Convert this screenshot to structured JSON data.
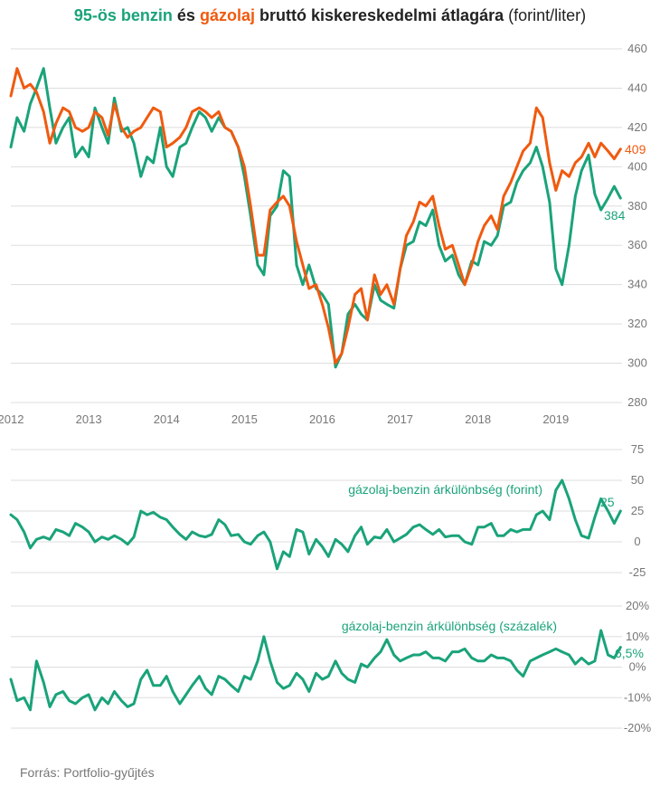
{
  "title": {
    "part1": "95-ös benzin",
    "part2": " és ",
    "part3": "gázolaj",
    "part4": " bruttó kiskereskedelmi átlagára",
    "part5": " (forint/liter)"
  },
  "source": "Forrás: Portfolio-gyűjtés",
  "colors": {
    "benzin": "#1aa37a",
    "gazolaj": "#f05a0f",
    "grid": "#dddddd",
    "tick": "#777777"
  },
  "chart_data": [
    {
      "type": "line",
      "title": "95-ös benzin és gázolaj bruttó kiskereskedelmi átlagára (forint/liter)",
      "xlabel": "",
      "ylabel": "",
      "x_ticks": [
        "2012",
        "2013",
        "2014",
        "2015",
        "2016",
        "2017",
        "2018",
        "2019"
      ],
      "xlim": [
        2012,
        2019.85
      ],
      "ylim": [
        280,
        460
      ],
      "y_ticks": [
        280,
        300,
        320,
        340,
        360,
        380,
        400,
        420,
        440,
        460
      ],
      "grid": true,
      "end_labels": {
        "gazolaj": "409",
        "benzin": "384"
      },
      "series": [
        {
          "name": "95-ös benzin",
          "color": "#1aa37a",
          "x": [
            2012.0,
            2012.08,
            2012.17,
            2012.25,
            2012.33,
            2012.42,
            2012.5,
            2012.58,
            2012.67,
            2012.75,
            2012.83,
            2012.92,
            2013.0,
            2013.08,
            2013.17,
            2013.25,
            2013.33,
            2013.42,
            2013.5,
            2013.58,
            2013.67,
            2013.75,
            2013.83,
            2013.92,
            2014.0,
            2014.08,
            2014.17,
            2014.25,
            2014.33,
            2014.42,
            2014.5,
            2014.58,
            2014.67,
            2014.75,
            2014.83,
            2014.92,
            2015.0,
            2015.08,
            2015.17,
            2015.25,
            2015.33,
            2015.42,
            2015.5,
            2015.58,
            2015.67,
            2015.75,
            2015.83,
            2015.92,
            2016.0,
            2016.08,
            2016.17,
            2016.25,
            2016.33,
            2016.42,
            2016.5,
            2016.58,
            2016.67,
            2016.75,
            2016.83,
            2016.92,
            2017.0,
            2017.08,
            2017.17,
            2017.25,
            2017.33,
            2017.42,
            2017.5,
            2017.58,
            2017.67,
            2017.75,
            2017.83,
            2017.92,
            2018.0,
            2018.08,
            2018.17,
            2018.25,
            2018.33,
            2018.42,
            2018.5,
            2018.58,
            2018.67,
            2018.75,
            2018.83,
            2018.92,
            2019.0,
            2019.08,
            2019.17,
            2019.25,
            2019.33,
            2019.42,
            2019.5,
            2019.58,
            2019.67,
            2019.75,
            2019.83
          ],
          "y": [
            410,
            425,
            418,
            432,
            440,
            450,
            430,
            412,
            420,
            425,
            405,
            410,
            405,
            430,
            420,
            412,
            435,
            418,
            420,
            412,
            395,
            405,
            402,
            420,
            400,
            395,
            410,
            412,
            420,
            428,
            425,
            418,
            425,
            420,
            418,
            410,
            395,
            375,
            350,
            345,
            375,
            380,
            398,
            395,
            350,
            340,
            350,
            338,
            335,
            330,
            298,
            305,
            325,
            330,
            325,
            322,
            340,
            332,
            330,
            328,
            348,
            360,
            362,
            372,
            370,
            378,
            360,
            352,
            355,
            345,
            340,
            352,
            350,
            362,
            360,
            365,
            380,
            382,
            392,
            398,
            402,
            410,
            400,
            382,
            348,
            340,
            360,
            385,
            398,
            406,
            386,
            378,
            384,
            390,
            384
          ]
        },
        {
          "name": "gázolaj",
          "color": "#f05a0f",
          "x": [
            2012.0,
            2012.08,
            2012.17,
            2012.25,
            2012.33,
            2012.42,
            2012.5,
            2012.58,
            2012.67,
            2012.75,
            2012.83,
            2012.92,
            2013.0,
            2013.08,
            2013.17,
            2013.25,
            2013.33,
            2013.42,
            2013.5,
            2013.58,
            2013.67,
            2013.75,
            2013.83,
            2013.92,
            2014.0,
            2014.08,
            2014.17,
            2014.25,
            2014.33,
            2014.42,
            2014.5,
            2014.58,
            2014.67,
            2014.75,
            2014.83,
            2014.92,
            2015.0,
            2015.08,
            2015.17,
            2015.25,
            2015.33,
            2015.42,
            2015.5,
            2015.58,
            2015.67,
            2015.75,
            2015.83,
            2015.92,
            2016.0,
            2016.08,
            2016.17,
            2016.25,
            2016.33,
            2016.42,
            2016.5,
            2016.58,
            2016.67,
            2016.75,
            2016.83,
            2016.92,
            2017.0,
            2017.08,
            2017.17,
            2017.25,
            2017.33,
            2017.42,
            2017.5,
            2017.58,
            2017.67,
            2017.75,
            2017.83,
            2017.92,
            2018.0,
            2018.08,
            2018.17,
            2018.25,
            2018.33,
            2018.42,
            2018.5,
            2018.58,
            2018.67,
            2018.75,
            2018.83,
            2018.92,
            2019.0,
            2019.08,
            2019.17,
            2019.25,
            2019.33,
            2019.42,
            2019.5,
            2019.58,
            2019.67,
            2019.75,
            2019.83
          ],
          "y": [
            436,
            450,
            440,
            442,
            438,
            428,
            412,
            422,
            430,
            428,
            420,
            418,
            420,
            428,
            425,
            416,
            432,
            420,
            415,
            418,
            420,
            425,
            430,
            428,
            410,
            412,
            415,
            420,
            428,
            430,
            428,
            425,
            428,
            420,
            418,
            410,
            400,
            380,
            355,
            355,
            378,
            382,
            385,
            380,
            362,
            350,
            338,
            340,
            330,
            318,
            300,
            305,
            318,
            335,
            338,
            322,
            345,
            335,
            340,
            330,
            348,
            365,
            372,
            382,
            380,
            385,
            370,
            358,
            360,
            350,
            340,
            350,
            362,
            370,
            375,
            368,
            385,
            392,
            400,
            408,
            412,
            430,
            425,
            402,
            388,
            398,
            395,
            402,
            405,
            412,
            405,
            412,
            408,
            404,
            409
          ]
        }
      ]
    },
    {
      "type": "line",
      "title": "gázolaj-benzin árkülönbség (forint)",
      "xlim": [
        2012,
        2019.85
      ],
      "ylim": [
        -25,
        75
      ],
      "y_ticks": [
        -25,
        0,
        25,
        50,
        75
      ],
      "grid": true,
      "end_label": "25",
      "series": [
        {
          "name": "gázolaj-benzin árkülönbség (forint)",
          "color": "#1aa37a",
          "x": [
            2012.0,
            2012.08,
            2012.17,
            2012.25,
            2012.33,
            2012.42,
            2012.5,
            2012.58,
            2012.67,
            2012.75,
            2012.83,
            2012.92,
            2013.0,
            2013.08,
            2013.17,
            2013.25,
            2013.33,
            2013.42,
            2013.5,
            2013.58,
            2013.67,
            2013.75,
            2013.83,
            2013.92,
            2014.0,
            2014.08,
            2014.17,
            2014.25,
            2014.33,
            2014.42,
            2014.5,
            2014.58,
            2014.67,
            2014.75,
            2014.83,
            2014.92,
            2015.0,
            2015.08,
            2015.17,
            2015.25,
            2015.33,
            2015.42,
            2015.5,
            2015.58,
            2015.67,
            2015.75,
            2015.83,
            2015.92,
            2016.0,
            2016.08,
            2016.17,
            2016.25,
            2016.33,
            2016.42,
            2016.5,
            2016.58,
            2016.67,
            2016.75,
            2016.83,
            2016.92,
            2017.0,
            2017.08,
            2017.17,
            2017.25,
            2017.33,
            2017.42,
            2017.5,
            2017.58,
            2017.67,
            2017.75,
            2017.83,
            2017.92,
            2018.0,
            2018.08,
            2018.17,
            2018.25,
            2018.33,
            2018.42,
            2018.5,
            2018.58,
            2018.67,
            2018.75,
            2018.83,
            2018.92,
            2019.0,
            2019.08,
            2019.17,
            2019.25,
            2019.33,
            2019.42,
            2019.5,
            2019.58,
            2019.67,
            2019.75,
            2019.83
          ],
          "y": [
            22,
            18,
            8,
            -5,
            2,
            4,
            2,
            10,
            8,
            5,
            15,
            12,
            8,
            0,
            4,
            2,
            5,
            2,
            -2,
            4,
            25,
            22,
            24,
            20,
            18,
            12,
            6,
            2,
            8,
            5,
            4,
            6,
            18,
            14,
            5,
            6,
            0,
            -2,
            5,
            8,
            0,
            -22,
            -8,
            -12,
            10,
            8,
            -10,
            2,
            -4,
            -12,
            2,
            -2,
            -8,
            5,
            12,
            -2,
            4,
            3,
            10,
            0,
            3,
            6,
            12,
            14,
            10,
            6,
            10,
            4,
            5,
            5,
            0,
            -2,
            12,
            12,
            15,
            5,
            5,
            10,
            8,
            10,
            10,
            22,
            25,
            18,
            42,
            50,
            35,
            18,
            5,
            3,
            20,
            35,
            25,
            15,
            25
          ]
        }
      ]
    },
    {
      "type": "line",
      "title": "gázolaj-benzin árkülönbség (százalék)",
      "xlim": [
        2012,
        2019.85
      ],
      "ylim": [
        -20,
        20
      ],
      "y_ticks": [
        -20,
        -10,
        0,
        10,
        20
      ],
      "y_tick_labels": [
        "-20%",
        "-10%",
        "0%",
        "10%",
        "20%"
      ],
      "grid": true,
      "end_label": "6,5%",
      "series": [
        {
          "name": "gázolaj-benzin árkülönbség (százalék)",
          "color": "#1aa37a",
          "x": [
            2012.0,
            2012.08,
            2012.17,
            2012.25,
            2012.33,
            2012.42,
            2012.5,
            2012.58,
            2012.67,
            2012.75,
            2012.83,
            2012.92,
            2013.0,
            2013.08,
            2013.17,
            2013.25,
            2013.33,
            2013.42,
            2013.5,
            2013.58,
            2013.67,
            2013.75,
            2013.83,
            2013.92,
            2014.0,
            2014.08,
            2014.17,
            2014.25,
            2014.33,
            2014.42,
            2014.5,
            2014.58,
            2014.67,
            2014.75,
            2014.83,
            2014.92,
            2015.0,
            2015.08,
            2015.17,
            2015.25,
            2015.33,
            2015.42,
            2015.5,
            2015.58,
            2015.67,
            2015.75,
            2015.83,
            2015.92,
            2016.0,
            2016.08,
            2016.17,
            2016.25,
            2016.33,
            2016.42,
            2016.5,
            2016.58,
            2016.67,
            2016.75,
            2016.83,
            2016.92,
            2017.0,
            2017.08,
            2017.17,
            2017.25,
            2017.33,
            2017.42,
            2017.5,
            2017.58,
            2017.67,
            2017.75,
            2017.83,
            2017.92,
            2018.0,
            2018.08,
            2018.17,
            2018.25,
            2018.33,
            2018.42,
            2018.5,
            2018.58,
            2018.67,
            2018.75,
            2018.83,
            2018.92,
            2019.0,
            2019.08,
            2019.17,
            2019.25,
            2019.33,
            2019.42,
            2019.5,
            2019.58,
            2019.67,
            2019.75,
            2019.83
          ],
          "y": [
            -4,
            -11,
            -10,
            -14,
            2,
            -5,
            -13,
            -9,
            -8,
            -11,
            -12,
            -10,
            -9,
            -14,
            -10,
            -12,
            -8,
            -11,
            -13,
            -12,
            -4,
            -1,
            -6,
            -6,
            -3,
            -8,
            -12,
            -9,
            -6,
            -3,
            -7,
            -9,
            -3,
            -4,
            -6,
            -8,
            -3,
            -4,
            2,
            10,
            2,
            -5,
            -7,
            -6,
            -2,
            -4,
            -8,
            -2,
            -4,
            -3,
            2,
            -2,
            -4,
            -5,
            1,
            0,
            3,
            5,
            9,
            4,
            2,
            3,
            4,
            4,
            5,
            3,
            3,
            2,
            5,
            5,
            6,
            3,
            2,
            2,
            4,
            3,
            3,
            2,
            -1,
            -3,
            2,
            3,
            4,
            5,
            6,
            5,
            4,
            1,
            3,
            1,
            2,
            12,
            4,
            3,
            6.5
          ]
        }
      ]
    }
  ]
}
